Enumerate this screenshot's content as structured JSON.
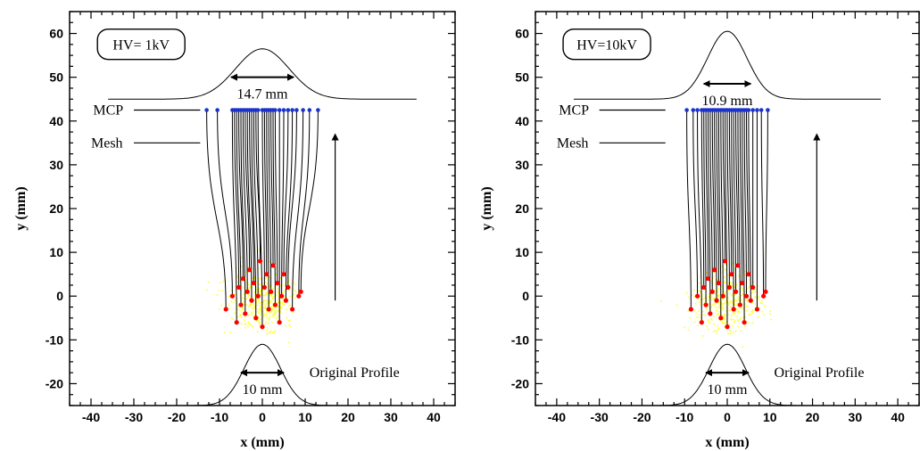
{
  "chart_data": [
    {
      "type": "scatter",
      "title": "",
      "xlabel": "x (mm)",
      "ylabel": "y (mm)",
      "xlim": [
        -45,
        45
      ],
      "ylim": [
        -25,
        65
      ],
      "xticks": [
        -40,
        -30,
        -20,
        -10,
        0,
        10,
        20,
        30,
        40
      ],
      "yticks": [
        -20,
        -10,
        0,
        10,
        20,
        30,
        40,
        50,
        60
      ],
      "hv_label": "HV= 1kV",
      "output_width_label": "14.7 mm",
      "input_width_label": "10 mm",
      "original_profile_label": "Original Profile",
      "mcp_label": "MCP",
      "mesh_label": "Mesh",
      "mcp_y": 42.5,
      "mesh_y": 35,
      "output_profile": {
        "baseline": 45,
        "peak": 56.5,
        "center": 0,
        "fwhm": 14.7,
        "x_range": [
          -36,
          36
        ]
      },
      "original_profile": {
        "baseline": -25,
        "peak": -11,
        "center": 0,
        "fwhm": 10,
        "x_range": [
          -16,
          16
        ]
      },
      "output_arrow": {
        "x1": -7.3,
        "x2": 7.3,
        "y": 50
      },
      "input_arrow": {
        "x1": -5,
        "x2": 5,
        "y": -17.5
      },
      "flight_arrow": {
        "x": 17,
        "y1": -1,
        "y2": 37
      },
      "trajectories": [
        {
          "x0": -8.5,
          "y0": -3,
          "x1": -13,
          "y1": 42.5
        },
        {
          "x0": -7,
          "y0": 0,
          "x1": -10.5,
          "y1": 42.5
        },
        {
          "x0": -6,
          "y0": -6,
          "x1": -7,
          "y1": 42.5
        },
        {
          "x0": -5.5,
          "y0": 2,
          "x1": -6.5,
          "y1": 42.5
        },
        {
          "x0": -5,
          "y0": -2,
          "x1": -6,
          "y1": 42.5
        },
        {
          "x0": -4.5,
          "y0": 4,
          "x1": -5.5,
          "y1": 42.5
        },
        {
          "x0": -4,
          "y0": -4,
          "x1": -5,
          "y1": 42.5
        },
        {
          "x0": -3.5,
          "y0": 1,
          "x1": -4.5,
          "y1": 42.5
        },
        {
          "x0": -3,
          "y0": 6,
          "x1": -4,
          "y1": 42.5
        },
        {
          "x0": -2.5,
          "y0": -1,
          "x1": -3.5,
          "y1": 42.5
        },
        {
          "x0": -2,
          "y0": 3,
          "x1": -3,
          "y1": 42.5
        },
        {
          "x0": -1.5,
          "y0": -5,
          "x1": -2.5,
          "y1": 42.5
        },
        {
          "x0": -1,
          "y0": 0,
          "x1": -2,
          "y1": 42.5
        },
        {
          "x0": -0.5,
          "y0": 8,
          "x1": -1.5,
          "y1": 42.5
        },
        {
          "x0": 0,
          "y0": -7,
          "x1": -1,
          "y1": 42.5
        },
        {
          "x0": 0.5,
          "y0": 2,
          "x1": 0,
          "y1": 42.5
        },
        {
          "x0": 1,
          "y0": 5,
          "x1": 0.5,
          "y1": 42.5
        },
        {
          "x0": 1.5,
          "y0": -3,
          "x1": 1,
          "y1": 42.5
        },
        {
          "x0": 2,
          "y0": 1,
          "x1": 1.5,
          "y1": 42.5
        },
        {
          "x0": 2.5,
          "y0": 7,
          "x1": 2,
          "y1": 42.5
        },
        {
          "x0": 3,
          "y0": -2,
          "x1": 2.5,
          "y1": 42.5
        },
        {
          "x0": 3.5,
          "y0": 3,
          "x1": 3,
          "y1": 42.5
        },
        {
          "x0": 4,
          "y0": -6,
          "x1": 4,
          "y1": 42.5
        },
        {
          "x0": 4.5,
          "y0": 0,
          "x1": 5,
          "y1": 42.5
        },
        {
          "x0": 5,
          "y0": 5,
          "x1": 6,
          "y1": 42.5
        },
        {
          "x0": 5.5,
          "y0": -1,
          "x1": 7,
          "y1": 42.5
        },
        {
          "x0": 6,
          "y0": 2,
          "x1": 8,
          "y1": 42.5
        },
        {
          "x0": 7,
          "y0": -3,
          "x1": 9.5,
          "y1": 42.5
        },
        {
          "x0": 8.5,
          "y0": 0,
          "x1": 11,
          "y1": 42.5
        },
        {
          "x0": 9,
          "y0": 1,
          "x1": 13,
          "y1": 42.5
        }
      ],
      "colors": {
        "trajectory": "#000000",
        "start_point": "#ff0000",
        "end_point": "#1a33cc",
        "cloud": "#ffff33"
      }
    },
    {
      "type": "scatter",
      "title": "",
      "xlabel": "x (mm)",
      "ylabel": "y (mm)",
      "xlim": [
        -45,
        45
      ],
      "ylim": [
        -25,
        65
      ],
      "xticks": [
        -40,
        -30,
        -20,
        -10,
        0,
        10,
        20,
        30,
        40
      ],
      "yticks": [
        -20,
        -10,
        0,
        10,
        20,
        30,
        40,
        50,
        60
      ],
      "hv_label": "HV=10kV",
      "output_width_label": "10.9 mm",
      "input_width_label": "10 mm",
      "original_profile_label": "Original Profile",
      "mcp_label": "MCP",
      "mesh_label": "Mesh",
      "mcp_y": 42.5,
      "mesh_y": 35,
      "output_profile": {
        "baseline": 45,
        "peak": 60.5,
        "center": 0,
        "fwhm": 10.9,
        "x_range": [
          -36,
          36
        ]
      },
      "original_profile": {
        "baseline": -25,
        "peak": -11,
        "center": 0,
        "fwhm": 10,
        "x_range": [
          -16,
          16
        ]
      },
      "output_arrow": {
        "x1": -5.5,
        "x2": 5.5,
        "y": 48.5
      },
      "input_arrow": {
        "x1": -5,
        "x2": 5,
        "y": -17.5
      },
      "flight_arrow": {
        "x": 21,
        "y1": -1,
        "y2": 37
      },
      "trajectories": [
        {
          "x0": -8.5,
          "y0": -3,
          "x1": -9.5,
          "y1": 42.5
        },
        {
          "x0": -7,
          "y0": 0,
          "x1": -8,
          "y1": 42.5
        },
        {
          "x0": -6,
          "y0": -6,
          "x1": -7,
          "y1": 42.5
        },
        {
          "x0": -5.5,
          "y0": 2,
          "x1": -6,
          "y1": 42.5
        },
        {
          "x0": -5,
          "y0": -2,
          "x1": -5.5,
          "y1": 42.5
        },
        {
          "x0": -4.5,
          "y0": 4,
          "x1": -5,
          "y1": 42.5
        },
        {
          "x0": -4,
          "y0": -4,
          "x1": -4.5,
          "y1": 42.5
        },
        {
          "x0": -3.5,
          "y0": 1,
          "x1": -4,
          "y1": 42.5
        },
        {
          "x0": -3,
          "y0": 6,
          "x1": -3.5,
          "y1": 42.5
        },
        {
          "x0": -2.5,
          "y0": -1,
          "x1": -3,
          "y1": 42.5
        },
        {
          "x0": -2,
          "y0": 3,
          "x1": -2.5,
          "y1": 42.5
        },
        {
          "x0": -1.5,
          "y0": -5,
          "x1": -2,
          "y1": 42.5
        },
        {
          "x0": -1,
          "y0": 0,
          "x1": -1.5,
          "y1": 42.5
        },
        {
          "x0": -0.5,
          "y0": 8,
          "x1": -1,
          "y1": 42.5
        },
        {
          "x0": 0,
          "y0": -7,
          "x1": -0.5,
          "y1": 42.5
        },
        {
          "x0": 0.5,
          "y0": 2,
          "x1": 0,
          "y1": 42.5
        },
        {
          "x0": 1,
          "y0": 5,
          "x1": 0.5,
          "y1": 42.5
        },
        {
          "x0": 1.5,
          "y0": -3,
          "x1": 1,
          "y1": 42.5
        },
        {
          "x0": 2,
          "y0": 1,
          "x1": 1.5,
          "y1": 42.5
        },
        {
          "x0": 2.5,
          "y0": 7,
          "x1": 2,
          "y1": 42.5
        },
        {
          "x0": 3,
          "y0": -2,
          "x1": 2.5,
          "y1": 42.5
        },
        {
          "x0": 3.5,
          "y0": 3,
          "x1": 3,
          "y1": 42.5
        },
        {
          "x0": 4,
          "y0": -6,
          "x1": 3.5,
          "y1": 42.5
        },
        {
          "x0": 4.5,
          "y0": 0,
          "x1": 4,
          "y1": 42.5
        },
        {
          "x0": 5,
          "y0": 5,
          "x1": 4.5,
          "y1": 42.5
        },
        {
          "x0": 5.5,
          "y0": -1,
          "x1": 5,
          "y1": 42.5
        },
        {
          "x0": 6,
          "y0": 2,
          "x1": 6,
          "y1": 42.5
        },
        {
          "x0": 7,
          "y0": -3,
          "x1": 7,
          "y1": 42.5
        },
        {
          "x0": 8.5,
          "y0": 0,
          "x1": 8,
          "y1": 42.5
        },
        {
          "x0": 9,
          "y0": 1,
          "x1": 9.5,
          "y1": 42.5
        }
      ],
      "colors": {
        "trajectory": "#000000",
        "start_point": "#ff0000",
        "end_point": "#1a33cc",
        "cloud": "#ffff33"
      }
    }
  ]
}
